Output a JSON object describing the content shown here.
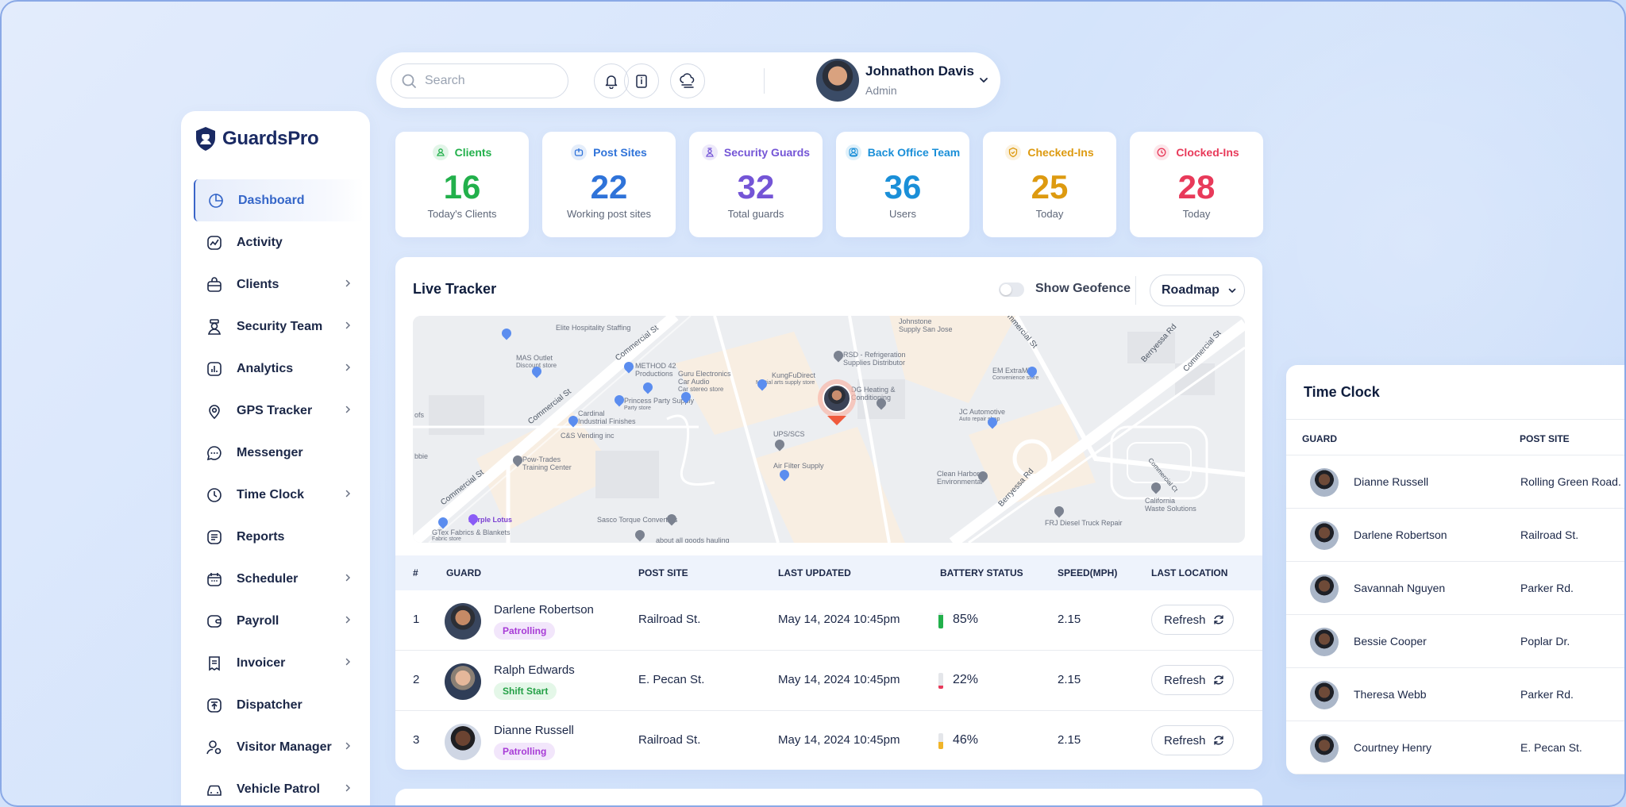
{
  "topbar": {
    "search_placeholder": "Search",
    "user_name": "Johnathon Davis",
    "user_role": "Admin"
  },
  "brand": {
    "name": "GuardsPro",
    "accent": "#3566c8"
  },
  "sidebar": {
    "items": [
      {
        "label": "Dashboard",
        "icon": "dashboard-icon",
        "active": true,
        "has_chevron": false
      },
      {
        "label": "Activity",
        "icon": "activity-icon",
        "has_chevron": false
      },
      {
        "label": "Clients",
        "icon": "briefcase-icon",
        "has_chevron": true
      },
      {
        "label": "Security Team",
        "icon": "guard-icon",
        "has_chevron": true
      },
      {
        "label": "Analytics",
        "icon": "analytics-icon",
        "has_chevron": true
      },
      {
        "label": "GPS Tracker",
        "icon": "location-icon",
        "has_chevron": true
      },
      {
        "label": "Messenger",
        "icon": "chat-icon",
        "has_chevron": false
      },
      {
        "label": "Time Clock",
        "icon": "clock-icon",
        "has_chevron": true
      },
      {
        "label": "Reports",
        "icon": "reports-icon",
        "has_chevron": false
      },
      {
        "label": "Scheduler",
        "icon": "calendar-icon",
        "has_chevron": true
      },
      {
        "label": "Payroll",
        "icon": "wallet-icon",
        "has_chevron": true
      },
      {
        "label": "Invoicer",
        "icon": "invoice-icon",
        "has_chevron": true
      },
      {
        "label": "Dispatcher",
        "icon": "dispatch-icon",
        "has_chevron": false
      },
      {
        "label": "Visitor Manager",
        "icon": "visitor-icon",
        "has_chevron": true
      },
      {
        "label": "Vehicle Patrol",
        "icon": "car-icon",
        "has_chevron": true
      }
    ]
  },
  "stats": [
    {
      "title": "Clients",
      "value": "16",
      "sub": "Today's Clients",
      "color": "#22b04b",
      "icon": "user-icon"
    },
    {
      "title": "Post Sites",
      "value": "22",
      "sub": "Working post sites",
      "color": "#2f73d9",
      "icon": "post-icon"
    },
    {
      "title": "Security Guards",
      "value": "32",
      "sub": "Total guards",
      "color": "#7455d6",
      "icon": "guard-icon"
    },
    {
      "title": "Back Office Team",
      "value": "36",
      "sub": "Users",
      "color": "#1a8fd8",
      "icon": "team-icon"
    },
    {
      "title": "Checked-Ins",
      "value": "25",
      "sub": "Today",
      "color": "#dd9a10",
      "icon": "check-icon"
    },
    {
      "title": "Clocked-Ins",
      "value": "28",
      "sub": "Today",
      "color": "#e83a5a",
      "icon": "clock-icon"
    }
  ],
  "tracker": {
    "title": "Live Tracker",
    "geofence_label": "Show Geofence",
    "map_type": "Roadmap",
    "columns": [
      "#",
      "GUARD",
      "POST SITE",
      "LAST UPDATED",
      "BATTERY STATUS",
      "SPEED(MPH)",
      "LAST LOCATION"
    ],
    "rows": [
      {
        "idx": "1",
        "name": "Darlene Robertson",
        "status": "Patrolling",
        "site": "Railroad St.",
        "updated": "May 14, 2024 10:45pm",
        "battery": "85%",
        "battery_level": 0.85,
        "battery_color": "#22b04b",
        "speed": "2.15",
        "action": "Refresh"
      },
      {
        "idx": "2",
        "name": "Ralph Edwards",
        "status": "Shift Start",
        "site": "E. Pecan St.",
        "updated": "May 14, 2024 10:45pm",
        "battery": "22%",
        "battery_level": 0.22,
        "battery_color": "#e83a5a",
        "speed": "2.15",
        "action": "Refresh"
      },
      {
        "idx": "3",
        "name": "Dianne Russell",
        "status": "Patrolling",
        "site": "Railroad St.",
        "updated": "May 14, 2024 10:45pm",
        "battery": "46%",
        "battery_level": 0.46,
        "battery_color": "#f0b429",
        "speed": "2.15",
        "action": "Refresh"
      }
    ]
  },
  "map_labels": {
    "elite": "Elite Hospitality Staffing",
    "commercial1": "Commercial St",
    "commercial2": "Commercial St",
    "commercial3": "Commercial St",
    "commercial4": "Commercial St",
    "mas": "MAS Outlet",
    "mas_sub": "Discount store",
    "method": "METHOD 42",
    "method2": "Productions",
    "guru": "Guru Electronics",
    "guru2": "Car Audio",
    "guru3": "Car stereo store",
    "kungfu": "KungFuDirect",
    "kungfu2": "Martial arts supply store",
    "rsd": "RSD - Refrigeration",
    "rsd2": "Supplies Distributor",
    "johnstone": "Johnstone",
    "johnstone2": "Supply San Jose",
    "berryessa1": "Berryessa Rd",
    "berryessa2": "Berryessa Rd",
    "emextra": "EM ExtraMile",
    "emextra2": "Convenience store",
    "princess": "Princess Party Supply",
    "princess2": "Party store",
    "cardinal": "Cardinal",
    "cardinal2": "Industrial Finishes",
    "csvending": "C&S Vending inc",
    "heating": "DG Heating &",
    "heating2": "Conditioning",
    "jc": "JC Automotive",
    "jc2": "Auto repair shop",
    "ups": "UPS/SCS",
    "airfilter": "Air Filter Supply",
    "powtrades": "Pow-Trades",
    "powtrades2": "Training Center",
    "cleanharbors": "Clean Harbors",
    "cleanharbors2": "Environmental",
    "california": "California",
    "california2": "Waste Solutions",
    "frj": "FRJ Diesel Truck Repair",
    "purplelotus": "Purple Lotus",
    "gtex": "GTex Fabrics & Blankets",
    "gtex2": "Fabric store",
    "sasco": "Sasco Torque Converters",
    "allgoods": "about all goods hauling",
    "commercialct": "Commercial Ct",
    "bbie": "bbie",
    "ofs": "ofs",
    "commercial5": "Commercial St"
  },
  "timeclock": {
    "title": "Time Clock",
    "columns": [
      "GUARD",
      "POST SITE"
    ],
    "rows": [
      {
        "name": "Dianne Russell",
        "site": "Rolling Green Road."
      },
      {
        "name": "Darlene Robertson",
        "site": "Railroad St."
      },
      {
        "name": "Savannah Nguyen",
        "site": "Parker Rd."
      },
      {
        "name": "Bessie Cooper",
        "site": "Poplar Dr."
      },
      {
        "name": "Theresa Webb",
        "site": "Parker Rd."
      },
      {
        "name": "Courtney Henry",
        "site": "E. Pecan St."
      }
    ]
  }
}
